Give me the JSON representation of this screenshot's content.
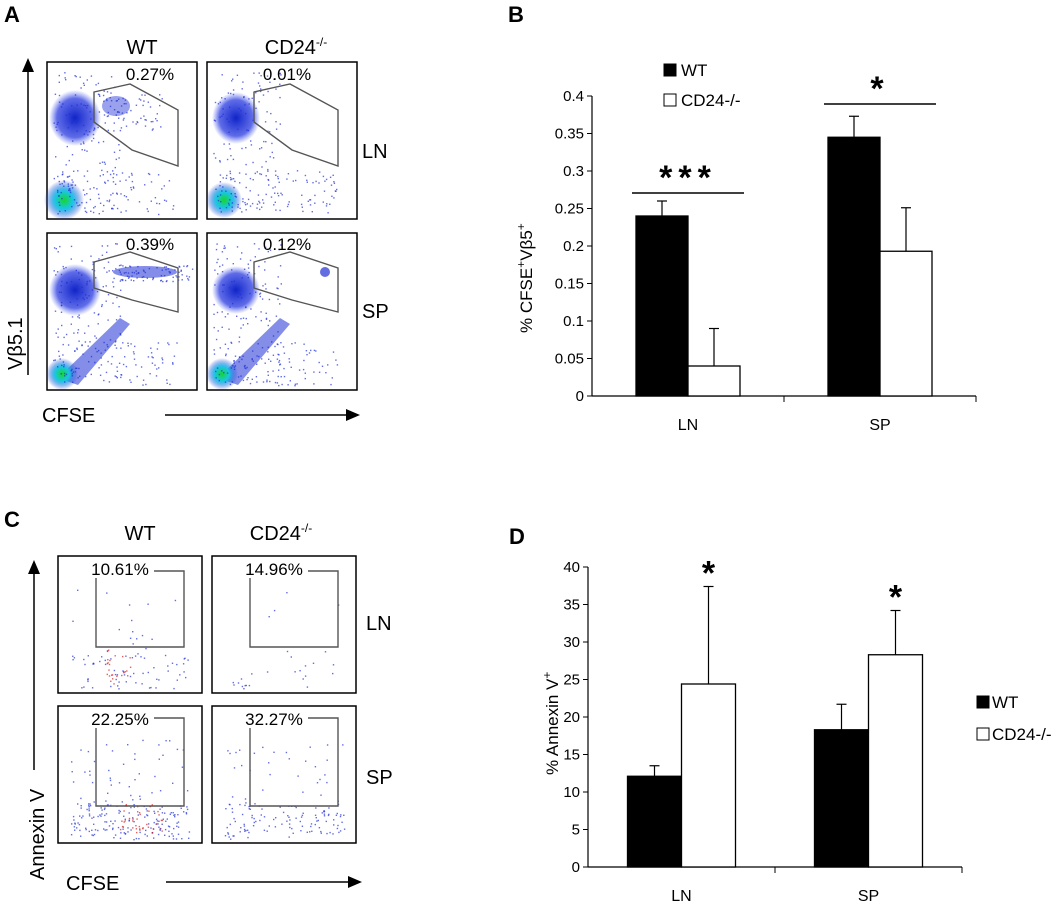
{
  "panel_letters": [
    "A",
    "B",
    "C",
    "D"
  ],
  "flow_a": {
    "col_headers": [
      "WT",
      "CD24"
    ],
    "col_sup": "-/-",
    "row_labels": [
      "LN",
      "SP"
    ],
    "gate_percents": [
      "0.27%",
      "0.01%",
      "0.39%",
      "0.12%"
    ],
    "y_axis": "Vβ5.1",
    "x_axis": "CFSE"
  },
  "flow_c": {
    "col_headers": [
      "WT",
      "CD24"
    ],
    "col_sup": "-/-",
    "row_labels": [
      "LN",
      "SP"
    ],
    "gate_percents": [
      "10.61%",
      "14.96%",
      "22.25%",
      "32.27%"
    ],
    "y_axis": "Annexin V",
    "x_axis": "CFSE"
  },
  "colors": {
    "wt_bar": "#000000",
    "ko_bar": "#ffffff",
    "dot_blue": "#1f2fd6",
    "dot_cyan": "#19c6e6",
    "dot_green": "#16d62e",
    "dot_red": "#d41f1f"
  },
  "chart_data": [
    {
      "type": "bar",
      "panel": "B",
      "title": "",
      "ylabel_main": "% CFSE",
      "ylabel_sup1": "+",
      "ylabel_mid": "Vβ5",
      "ylabel_sup2": "+",
      "categories": [
        "LN",
        "SP"
      ],
      "series": [
        {
          "name": "WT",
          "values": [
            0.24,
            0.345
          ],
          "errors": [
            0.02,
            0.028
          ]
        },
        {
          "name": "CD24-/-",
          "values": [
            0.04,
            0.193
          ],
          "errors": [
            0.05,
            0.058
          ]
        }
      ],
      "ylim": [
        0,
        0.4
      ],
      "yticks": [
        "0",
        "0.05",
        "0.1",
        "0.15",
        "0.2",
        "0.25",
        "0.3",
        "0.35",
        "0.4"
      ],
      "significance": [
        "***",
        "*"
      ],
      "legend": "top-left"
    },
    {
      "type": "bar",
      "panel": "D",
      "title": "",
      "ylabel_main": "% Annexin V",
      "ylabel_sup1": "+",
      "categories": [
        "LN",
        "SP"
      ],
      "series": [
        {
          "name": "WT",
          "values": [
            12.1,
            18.3
          ],
          "errors": [
            1.4,
            3.4
          ]
        },
        {
          "name": "CD24-/-",
          "values": [
            24.4,
            28.3
          ],
          "errors": [
            13.0,
            5.9
          ]
        }
      ],
      "ylim": [
        0,
        40
      ],
      "yticks": [
        "0",
        "5",
        "10",
        "15",
        "20",
        "25",
        "30",
        "35",
        "40"
      ],
      "significance": [
        "*",
        "*"
      ],
      "legend": "right"
    }
  ]
}
